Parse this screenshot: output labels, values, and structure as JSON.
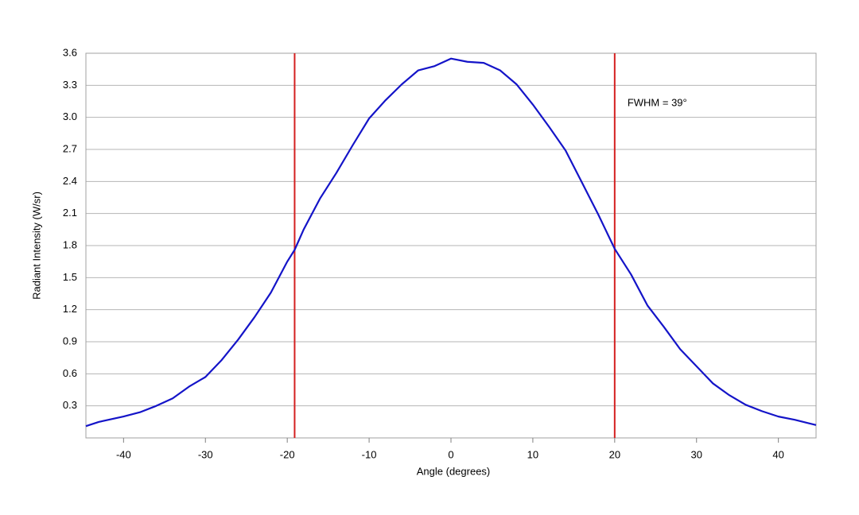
{
  "chart_data": {
    "type": "line",
    "x_label": "Angle (degrees)",
    "y_label": "Radiant Intensity (W/sr)",
    "x": [
      -44.6,
      -43,
      -40,
      -38,
      -36,
      -34,
      -32,
      -30,
      -28,
      -26,
      -24,
      -22,
      -20,
      -19.1,
      -18,
      -16,
      -14,
      -12,
      -10,
      -8,
      -6,
      -4,
      -2,
      0,
      2,
      4,
      6,
      8,
      10,
      12,
      14,
      16,
      18,
      20,
      22,
      24,
      26,
      28,
      30,
      32,
      34,
      36,
      38,
      40,
      42,
      44.6
    ],
    "series": [
      {
        "color": "#1414c8",
        "values": [
          0.11,
          0.15,
          0.2,
          0.24,
          0.3,
          0.37,
          0.48,
          0.57,
          0.73,
          0.92,
          1.13,
          1.36,
          1.65,
          1.76,
          1.95,
          2.24,
          2.48,
          2.74,
          2.99,
          3.16,
          3.31,
          3.44,
          3.48,
          3.55,
          3.52,
          3.51,
          3.44,
          3.31,
          3.12,
          2.91,
          2.69,
          2.39,
          2.09,
          1.77,
          1.53,
          1.24,
          1.04,
          0.83,
          0.67,
          0.51,
          0.4,
          0.31,
          0.25,
          0.2,
          0.17,
          0.12
        ]
      }
    ],
    "vlines": {
      "color": "#d42020",
      "x": [
        -19.1,
        20
      ]
    },
    "annotation": "FWHM = 39°",
    "xlim": [
      -44.6,
      44.6
    ],
    "ylim": [
      0,
      3.6
    ],
    "xticks": [
      -40,
      -30,
      -20,
      -10,
      0,
      10,
      20,
      30,
      40
    ],
    "yticks": [
      0.3,
      0.6,
      0.9,
      1.2,
      1.5,
      1.8,
      2.1,
      2.4,
      2.7,
      {
        "value": 3,
        "label": "3.0"
      },
      3.3,
      3.6
    ],
    "grid": true
  }
}
